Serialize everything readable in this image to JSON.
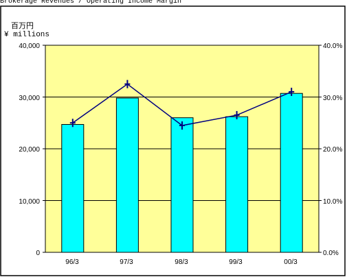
{
  "chart_data": {
    "type": "bar",
    "caption": "Brokerage Revenues / Operating Income Margin",
    "unit_label_jp": "百万円",
    "unit_label_en": "¥ millions",
    "categories": [
      "96/3",
      "97/3",
      "98/3",
      "99/3",
      "00/3"
    ],
    "series": [
      {
        "type": "bar",
        "axis": "left",
        "values": [
          24700,
          29800,
          26000,
          26200,
          30700
        ],
        "color": "#00ffff"
      },
      {
        "type": "line",
        "axis": "right",
        "values": [
          0.25,
          0.325,
          0.245,
          0.265,
          0.31
        ],
        "color": "#000080"
      }
    ],
    "ylim_left": [
      0,
      40000
    ],
    "yticks_left": [
      "0",
      "10,000",
      "20,000",
      "30,000",
      "40,000"
    ],
    "ylim_right": [
      0,
      0.4
    ],
    "yticks_right": [
      "0.0%",
      "10.0%",
      "20.0%",
      "30.0%",
      "40.0%"
    ],
    "plot_background": "#ffff99",
    "grid": true
  }
}
